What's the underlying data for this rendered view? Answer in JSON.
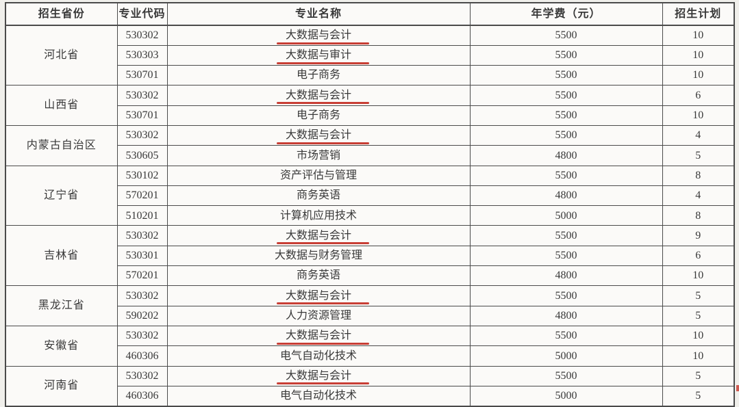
{
  "colors": {
    "bg": "#f0efeb",
    "cell-bg": "#fbfaf8",
    "line": "#4a4a4a",
    "ink": "#383838",
    "red": "#c5342a"
  },
  "table": {
    "headers": {
      "province": "招生省份",
      "code": "专业代码",
      "major": "专业名称",
      "fee": "年学费（元）",
      "plan": "招生计划"
    },
    "provinces": [
      {
        "name": "河北省",
        "rows": [
          {
            "code": "530302",
            "major": "大数据与会计",
            "fee": "5500",
            "plan": "10",
            "underline": true
          },
          {
            "code": "530303",
            "major": "大数据与审计",
            "fee": "5500",
            "plan": "10",
            "underline": true
          },
          {
            "code": "530701",
            "major": "电子商务",
            "fee": "5500",
            "plan": "10",
            "underline": false
          }
        ]
      },
      {
        "name": "山西省",
        "rows": [
          {
            "code": "530302",
            "major": "大数据与会计",
            "fee": "5500",
            "plan": "6",
            "underline": true
          },
          {
            "code": "530701",
            "major": "电子商务",
            "fee": "5500",
            "plan": "10",
            "underline": false
          }
        ]
      },
      {
        "name": "内蒙古自治区",
        "rows": [
          {
            "code": "530302",
            "major": "大数据与会计",
            "fee": "5500",
            "plan": "4",
            "underline": true
          },
          {
            "code": "530605",
            "major": "市场营销",
            "fee": "4800",
            "plan": "5",
            "underline": false
          }
        ]
      },
      {
        "name": "辽宁省",
        "rows": [
          {
            "code": "530102",
            "major": "资产评估与管理",
            "fee": "5500",
            "plan": "8",
            "underline": false
          },
          {
            "code": "570201",
            "major": "商务英语",
            "fee": "4800",
            "plan": "4",
            "underline": false
          },
          {
            "code": "510201",
            "major": "计算机应用技术",
            "fee": "5000",
            "plan": "8",
            "underline": false
          }
        ]
      },
      {
        "name": "吉林省",
        "rows": [
          {
            "code": "530302",
            "major": "大数据与会计",
            "fee": "5500",
            "plan": "9",
            "underline": true
          },
          {
            "code": "530301",
            "major": "大数据与财务管理",
            "fee": "5500",
            "plan": "6",
            "underline": false
          },
          {
            "code": "570201",
            "major": "商务英语",
            "fee": "4800",
            "plan": "10",
            "underline": false
          }
        ]
      },
      {
        "name": "黑龙江省",
        "rows": [
          {
            "code": "530302",
            "major": "大数据与会计",
            "fee": "5500",
            "plan": "5",
            "underline": true
          },
          {
            "code": "590202",
            "major": "人力资源管理",
            "fee": "4800",
            "plan": "5",
            "underline": false
          }
        ]
      },
      {
        "name": "安徽省",
        "rows": [
          {
            "code": "530302",
            "major": "大数据与会计",
            "fee": "5500",
            "plan": "10",
            "underline": true
          },
          {
            "code": "460306",
            "major": "电气自动化技术",
            "fee": "5000",
            "plan": "10",
            "underline": false
          }
        ]
      },
      {
        "name": "河南省",
        "rows": [
          {
            "code": "530302",
            "major": "大数据与会计",
            "fee": "5500",
            "plan": "5",
            "underline": true
          },
          {
            "code": "460306",
            "major": "电气自动化技术",
            "fee": "5000",
            "plan": "5",
            "underline": false
          }
        ]
      }
    ]
  }
}
